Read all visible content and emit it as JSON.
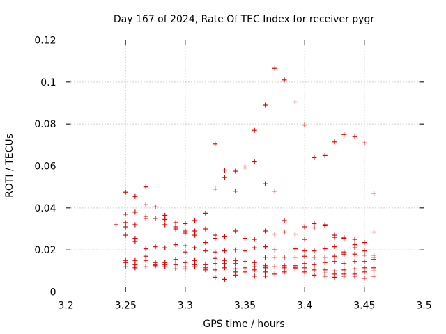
{
  "chart_data": {
    "type": "scatter",
    "title": "Day 167 of 2024, Rate Of TEC Index for receiver pygr",
    "xlabel": "GPS time / hours",
    "ylabel": "ROTI / TECUs",
    "xlim": [
      3.2,
      3.5
    ],
    "ylim": [
      0,
      0.12
    ],
    "grid": true,
    "marker": "plus",
    "color": "#e00000",
    "xticks": [
      "3.2",
      "3.25",
      "3.3",
      "3.35",
      "3.4",
      "3.45",
      "3.5"
    ],
    "yticks": [
      "0",
      "0.02",
      "0.04",
      "0.06",
      "0.08",
      "0.1",
      "0.12"
    ],
    "points": [
      [
        3.242,
        0.032
      ],
      [
        3.25,
        0.0475
      ],
      [
        3.25,
        0.037
      ],
      [
        3.25,
        0.033
      ],
      [
        3.25,
        0.031
      ],
      [
        3.25,
        0.027
      ],
      [
        3.25,
        0.015
      ],
      [
        3.25,
        0.014
      ],
      [
        3.25,
        0.012
      ],
      [
        3.258,
        0.0455
      ],
      [
        3.258,
        0.038
      ],
      [
        3.258,
        0.032
      ],
      [
        3.258,
        0.0255
      ],
      [
        3.258,
        0.024
      ],
      [
        3.258,
        0.015
      ],
      [
        3.258,
        0.013
      ],
      [
        3.258,
        0.0115
      ],
      [
        3.267,
        0.05
      ],
      [
        3.267,
        0.0415
      ],
      [
        3.267,
        0.036
      ],
      [
        3.267,
        0.035
      ],
      [
        3.267,
        0.0205
      ],
      [
        3.267,
        0.017
      ],
      [
        3.267,
        0.015
      ],
      [
        3.267,
        0.012
      ],
      [
        3.275,
        0.0405
      ],
      [
        3.275,
        0.035
      ],
      [
        3.275,
        0.0215
      ],
      [
        3.275,
        0.014
      ],
      [
        3.275,
        0.013
      ],
      [
        3.275,
        0.0125
      ],
      [
        3.283,
        0.0365
      ],
      [
        3.283,
        0.0345
      ],
      [
        3.283,
        0.032
      ],
      [
        3.283,
        0.021
      ],
      [
        3.283,
        0.014
      ],
      [
        3.283,
        0.013
      ],
      [
        3.283,
        0.012
      ],
      [
        3.292,
        0.033
      ],
      [
        3.292,
        0.031
      ],
      [
        3.292,
        0.03
      ],
      [
        3.292,
        0.0225
      ],
      [
        3.292,
        0.0155
      ],
      [
        3.292,
        0.013
      ],
      [
        3.292,
        0.011
      ],
      [
        3.3,
        0.0325
      ],
      [
        3.3,
        0.029
      ],
      [
        3.3,
        0.028
      ],
      [
        3.3,
        0.022
      ],
      [
        3.3,
        0.019
      ],
      [
        3.3,
        0.014
      ],
      [
        3.3,
        0.012
      ],
      [
        3.3,
        0.011
      ],
      [
        3.308,
        0.034
      ],
      [
        3.308,
        0.029
      ],
      [
        3.308,
        0.027
      ],
      [
        3.308,
        0.021
      ],
      [
        3.308,
        0.015
      ],
      [
        3.308,
        0.013
      ],
      [
        3.308,
        0.012
      ],
      [
        3.317,
        0.0375
      ],
      [
        3.317,
        0.03
      ],
      [
        3.317,
        0.0235
      ],
      [
        3.317,
        0.0195
      ],
      [
        3.317,
        0.013
      ],
      [
        3.317,
        0.0115
      ],
      [
        3.317,
        0.0105
      ],
      [
        3.325,
        0.0705
      ],
      [
        3.325,
        0.049
      ],
      [
        3.325,
        0.027
      ],
      [
        3.325,
        0.0255
      ],
      [
        3.325,
        0.019
      ],
      [
        3.325,
        0.016
      ],
      [
        3.325,
        0.0135
      ],
      [
        3.325,
        0.0105
      ],
      [
        3.325,
        0.007
      ],
      [
        3.333,
        0.058
      ],
      [
        3.333,
        0.0545
      ],
      [
        3.333,
        0.0265
      ],
      [
        3.333,
        0.0195
      ],
      [
        3.333,
        0.015
      ],
      [
        3.333,
        0.0135
      ],
      [
        3.333,
        0.0115
      ],
      [
        3.333,
        0.006
      ],
      [
        3.342,
        0.0575
      ],
      [
        3.342,
        0.048
      ],
      [
        3.342,
        0.029
      ],
      [
        3.342,
        0.02
      ],
      [
        3.342,
        0.015
      ],
      [
        3.342,
        0.0135
      ],
      [
        3.342,
        0.011
      ],
      [
        3.342,
        0.0095
      ],
      [
        3.342,
        0.008
      ],
      [
        3.35,
        0.06
      ],
      [
        3.35,
        0.059
      ],
      [
        3.35,
        0.0255
      ],
      [
        3.35,
        0.0195
      ],
      [
        3.35,
        0.0145
      ],
      [
        3.35,
        0.0115
      ],
      [
        3.35,
        0.0095
      ],
      [
        3.358,
        0.077
      ],
      [
        3.358,
        0.062
      ],
      [
        3.358,
        0.025
      ],
      [
        3.358,
        0.021
      ],
      [
        3.358,
        0.014
      ],
      [
        3.358,
        0.012
      ],
      [
        3.358,
        0.0105
      ],
      [
        3.358,
        0.0075
      ],
      [
        3.367,
        0.089
      ],
      [
        3.367,
        0.0515
      ],
      [
        3.367,
        0.029
      ],
      [
        3.367,
        0.0215
      ],
      [
        3.367,
        0.0165
      ],
      [
        3.367,
        0.0125
      ],
      [
        3.367,
        0.0115
      ],
      [
        3.367,
        0.0095
      ],
      [
        3.367,
        0.0075
      ],
      [
        3.375,
        0.1065
      ],
      [
        3.375,
        0.048
      ],
      [
        3.375,
        0.0275
      ],
      [
        3.375,
        0.02
      ],
      [
        3.375,
        0.0165
      ],
      [
        3.375,
        0.012
      ],
      [
        3.375,
        0.0085
      ],
      [
        3.383,
        0.101
      ],
      [
        3.383,
        0.034
      ],
      [
        3.383,
        0.0285
      ],
      [
        3.383,
        0.0165
      ],
      [
        3.383,
        0.0125
      ],
      [
        3.383,
        0.0115
      ],
      [
        3.383,
        0.0095
      ],
      [
        3.392,
        0.0905
      ],
      [
        3.392,
        0.0275
      ],
      [
        3.392,
        0.0205
      ],
      [
        3.392,
        0.0165
      ],
      [
        3.392,
        0.0125
      ],
      [
        3.392,
        0.0115
      ],
      [
        3.392,
        0.011
      ],
      [
        3.4,
        0.0795
      ],
      [
        3.4,
        0.031
      ],
      [
        3.4,
        0.025
      ],
      [
        3.4,
        0.0195
      ],
      [
        3.4,
        0.017
      ],
      [
        3.4,
        0.0135
      ],
      [
        3.4,
        0.0115
      ],
      [
        3.4,
        0.0095
      ],
      [
        3.408,
        0.064
      ],
      [
        3.408,
        0.0325
      ],
      [
        3.408,
        0.0305
      ],
      [
        3.408,
        0.0195
      ],
      [
        3.408,
        0.0165
      ],
      [
        3.408,
        0.013
      ],
      [
        3.408,
        0.0105
      ],
      [
        3.408,
        0.008
      ],
      [
        3.417,
        0.065
      ],
      [
        3.417,
        0.032
      ],
      [
        3.417,
        0.0315
      ],
      [
        3.417,
        0.0205
      ],
      [
        3.417,
        0.0165
      ],
      [
        3.417,
        0.014
      ],
      [
        3.417,
        0.0105
      ],
      [
        3.417,
        0.009
      ],
      [
        3.417,
        0.0075
      ],
      [
        3.425,
        0.0715
      ],
      [
        3.425,
        0.027
      ],
      [
        3.425,
        0.026
      ],
      [
        3.425,
        0.0215
      ],
      [
        3.425,
        0.017
      ],
      [
        3.425,
        0.0145
      ],
      [
        3.425,
        0.01
      ],
      [
        3.425,
        0.0085
      ],
      [
        3.425,
        0.007
      ],
      [
        3.433,
        0.075
      ],
      [
        3.433,
        0.026
      ],
      [
        3.433,
        0.0255
      ],
      [
        3.433,
        0.019
      ],
      [
        3.433,
        0.018
      ],
      [
        3.433,
        0.0135
      ],
      [
        3.433,
        0.0105
      ],
      [
        3.433,
        0.0085
      ],
      [
        3.433,
        0.0075
      ],
      [
        3.442,
        0.074
      ],
      [
        3.442,
        0.025
      ],
      [
        3.442,
        0.0225
      ],
      [
        3.442,
        0.021
      ],
      [
        3.442,
        0.018
      ],
      [
        3.442,
        0.0145
      ],
      [
        3.442,
        0.011
      ],
      [
        3.442,
        0.0085
      ],
      [
        3.442,
        0.0075
      ],
      [
        3.45,
        0.071
      ],
      [
        3.45,
        0.0235
      ],
      [
        3.45,
        0.0195
      ],
      [
        3.45,
        0.0175
      ],
      [
        3.45,
        0.0145
      ],
      [
        3.45,
        0.0115
      ],
      [
        3.45,
        0.0095
      ],
      [
        3.45,
        0.0065
      ],
      [
        3.458,
        0.047
      ],
      [
        3.458,
        0.0285
      ],
      [
        3.458,
        0.0175
      ],
      [
        3.458,
        0.0165
      ],
      [
        3.458,
        0.0155
      ],
      [
        3.458,
        0.0115
      ],
      [
        3.458,
        0.01
      ],
      [
        3.458,
        0.0075
      ]
    ]
  }
}
